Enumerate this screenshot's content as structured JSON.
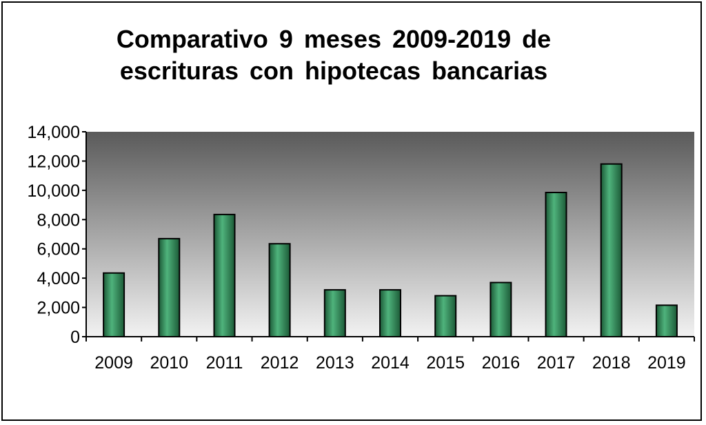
{
  "chart_data": {
    "type": "bar",
    "title_lines": [
      "Comparativo 9 meses 2009-2019 de",
      "escrituras con hipotecas bancarias"
    ],
    "categories": [
      "2009",
      "2010",
      "2011",
      "2012",
      "2013",
      "2014",
      "2015",
      "2016",
      "2017",
      "2018",
      "2019"
    ],
    "values": [
      4350,
      6700,
      8350,
      6350,
      3200,
      3200,
      2800,
      3700,
      9850,
      11800,
      2150
    ],
    "ylim": [
      0,
      14000
    ],
    "yticks": [
      "0",
      "2,000",
      "4,000",
      "6,000",
      "8,000",
      "10,000",
      "12,000",
      "14,000"
    ],
    "xlabel": "",
    "ylabel": "",
    "grid": false,
    "legend": "none",
    "colors": {
      "bar": "#2e8b57",
      "bar_dark": "#1c5a37",
      "bar_light": "#4fb37c",
      "plot_bg_top": "#5a5a5a",
      "plot_bg_bottom": "#f2f2f2",
      "axis": "#000000"
    }
  }
}
